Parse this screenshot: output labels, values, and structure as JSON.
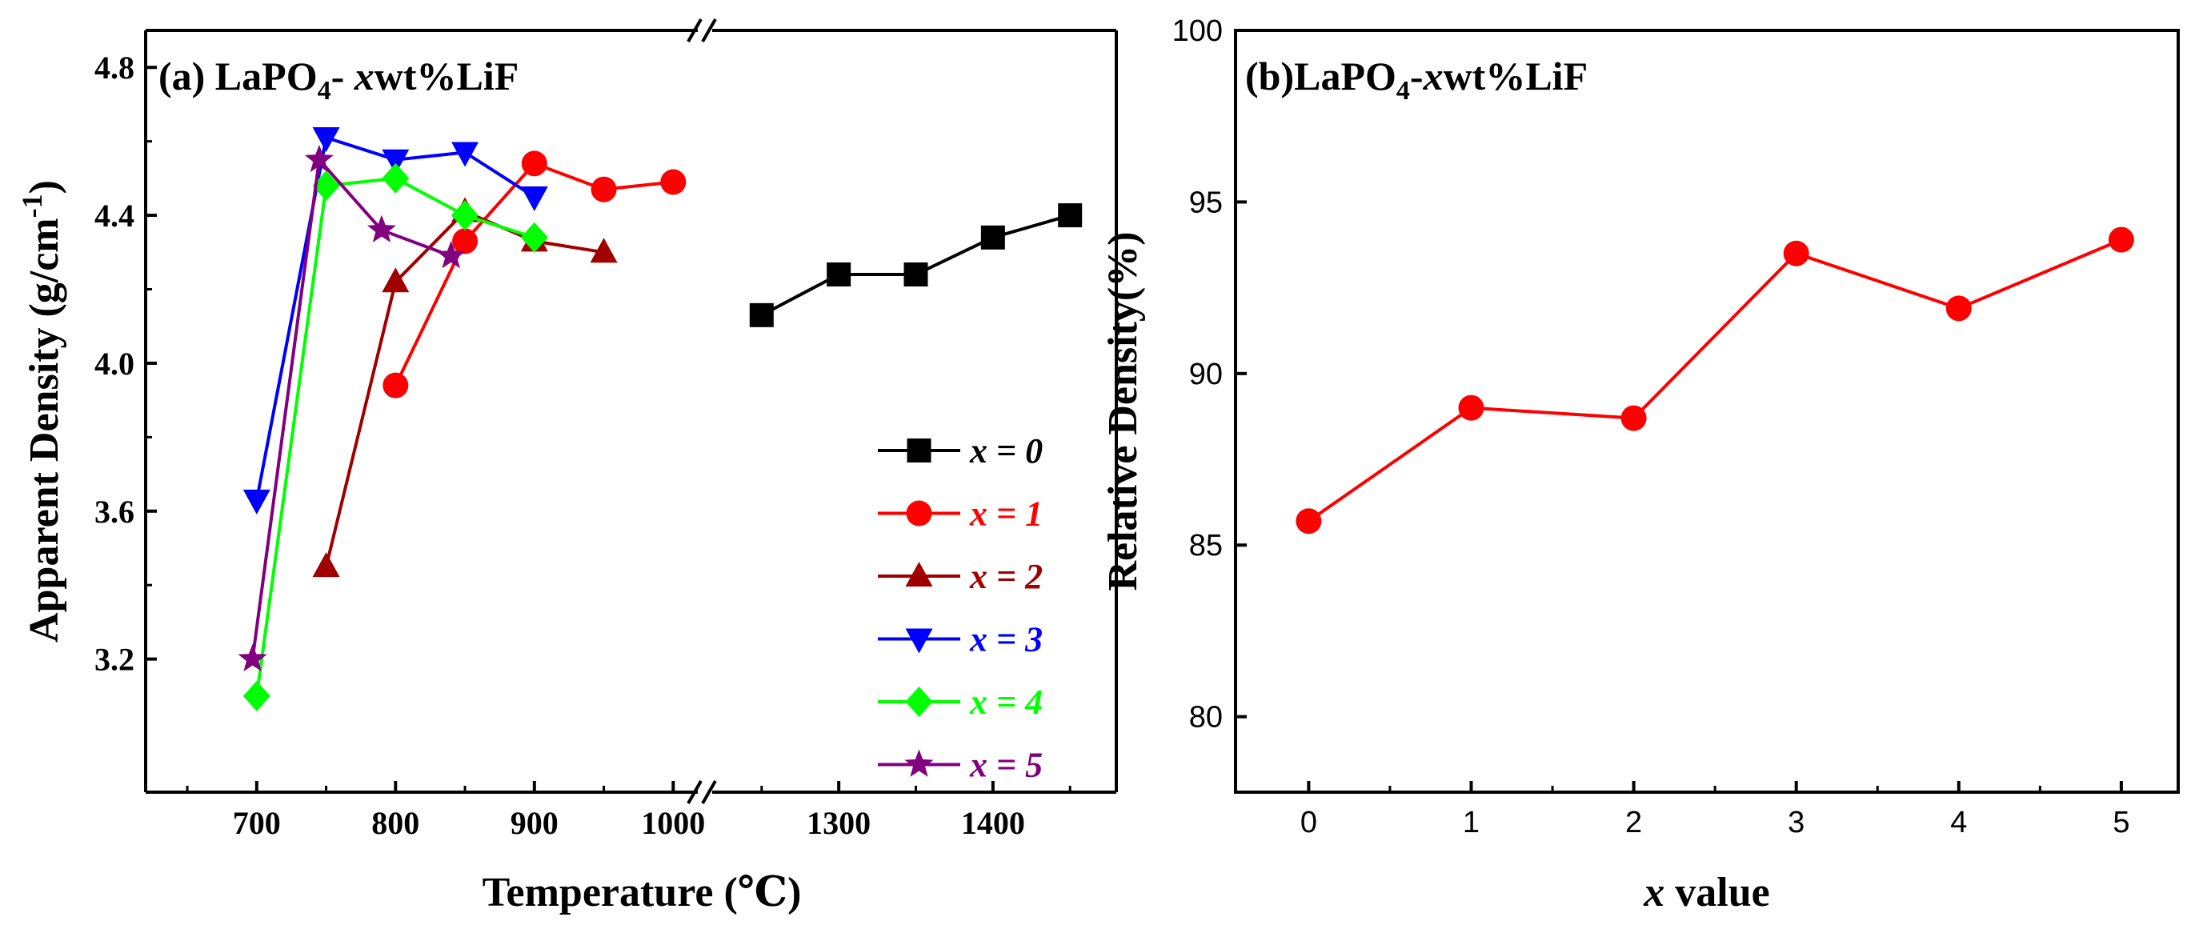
{
  "chart_data": [
    {
      "type": "line",
      "title_prefix": "(a) LaPO",
      "title_sub": "4",
      "title_dash": "- ",
      "title_x": "x",
      "title_suffix": "wt%LiF",
      "xlabel": "Temperature (℃)",
      "ylabel_main": "Apparent Density (g/cm",
      "ylabel_sup": "-1",
      "ylabel_close": ")",
      "axis_break": true,
      "x_ranges": [
        [
          620,
          1020
        ],
        [
          1220,
          1480
        ]
      ],
      "ylim": [
        2.84,
        4.9
      ],
      "x_ticks_left": [
        700,
        800,
        900,
        1000
      ],
      "x_ticks_right": [
        1300,
        1400
      ],
      "y_ticks": [
        "3.2",
        "3.6",
        "4.0",
        "4.4",
        "4.8"
      ],
      "y_tick_values": [
        3.2,
        3.6,
        4.0,
        4.4,
        4.8
      ],
      "series": [
        {
          "name": "x = 0",
          "x_var": "x",
          "x_eq": " = 0",
          "color": "#000000",
          "marker": "square",
          "x": [
            1250,
            1300,
            1350,
            1400,
            1450
          ],
          "y": [
            4.13,
            4.24,
            4.24,
            4.34,
            4.4
          ]
        },
        {
          "name": "x = 1",
          "x_var": "x",
          "x_eq": " = 1",
          "color": "#ff0000",
          "marker": "circle",
          "x": [
            800,
            850,
            900,
            950,
            1000
          ],
          "y": [
            3.94,
            4.33,
            4.54,
            4.47,
            4.49
          ]
        },
        {
          "name": "x = 2",
          "x_var": "x",
          "x_eq": " = 2",
          "color": "#a00000",
          "marker": "triangle-up",
          "x": [
            750,
            800,
            850,
            900,
            950
          ],
          "y": [
            3.45,
            4.22,
            4.41,
            4.33,
            4.3
          ]
        },
        {
          "name": "x = 3",
          "x_var": "x",
          "x_eq": " = 3",
          "color": "#0000ff",
          "marker": "triangle-down",
          "x": [
            700,
            750,
            800,
            850,
            900
          ],
          "y": [
            3.63,
            4.61,
            4.55,
            4.57,
            4.45
          ]
        },
        {
          "name": "x = 4",
          "x_var": "x",
          "x_eq": " = 4",
          "color": "#00ff00",
          "marker": "diamond",
          "x": [
            700,
            750,
            800,
            850,
            900
          ],
          "y": [
            3.1,
            4.48,
            4.5,
            4.4,
            4.34
          ]
        },
        {
          "name": "x = 5",
          "x_var": "x",
          "x_eq": " = 5",
          "color": "#800080",
          "marker": "star",
          "x": [
            697,
            745,
            790,
            840
          ],
          "y": [
            3.2,
            4.55,
            4.36,
            4.29
          ]
        }
      ],
      "legend_position": "bottom-right"
    },
    {
      "type": "line",
      "title_prefix": "(b)LaPO",
      "title_sub": "4",
      "title_dash": "-",
      "title_x": "x",
      "title_suffix": "wt%LiF",
      "xlabel_x": "x",
      "xlabel_rest": " value",
      "ylabel": "Relative Density(%)",
      "xlim": [
        -0.45,
        5.35
      ],
      "ylim": [
        77.8,
        100
      ],
      "x_ticks": [
        "0",
        "1",
        "2",
        "3",
        "4",
        "5"
      ],
      "x_tick_values": [
        0,
        1,
        2,
        3,
        4,
        5
      ],
      "y_ticks": [
        "80",
        "85",
        "90",
        "95",
        "100"
      ],
      "y_tick_values": [
        80,
        85,
        90,
        95,
        100
      ],
      "series": [
        {
          "name": "Relative Density",
          "color": "#ff0000",
          "marker": "circle",
          "x": [
            0,
            1,
            2,
            3,
            4,
            5
          ],
          "y": [
            85.7,
            89.0,
            88.7,
            93.5,
            91.9,
            93.9
          ]
        }
      ]
    }
  ]
}
